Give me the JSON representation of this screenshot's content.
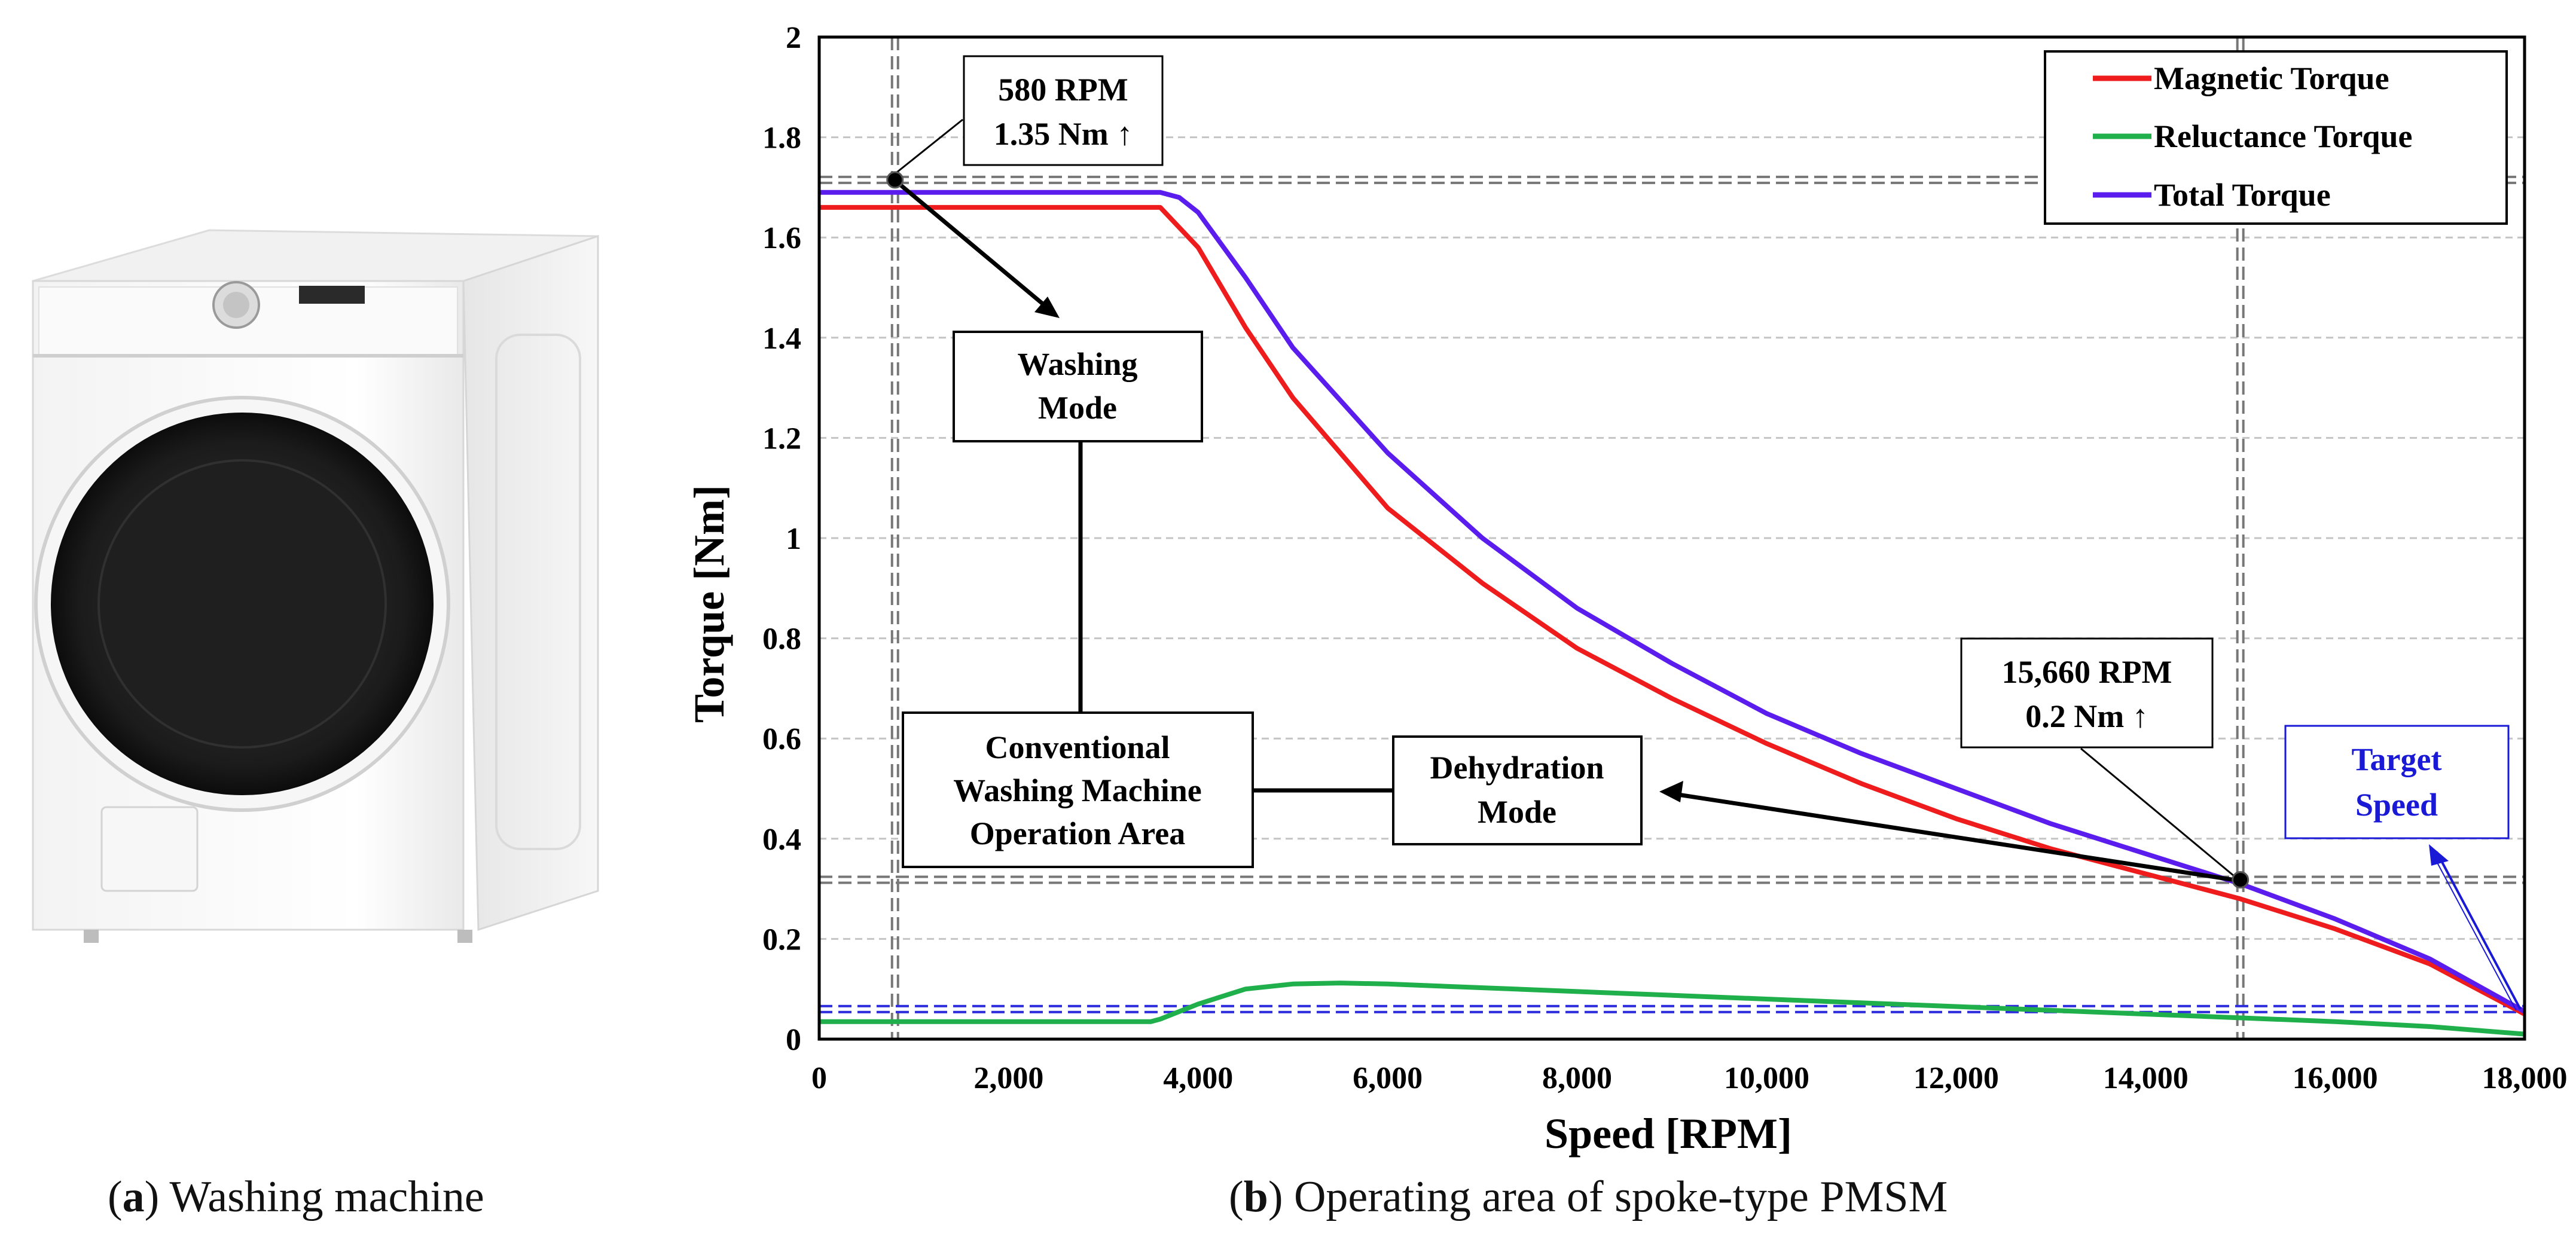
{
  "captions": {
    "a": {
      "letter": "a",
      "text": "Washing machine"
    },
    "b": {
      "letter": "b",
      "text": "Operating area of spoke-type PMSM"
    }
  },
  "chart_data": {
    "type": "line",
    "title": "",
    "xlabel": "Speed [RPM]",
    "ylabel": "Torque [Nm]",
    "xlim": [
      0,
      18000
    ],
    "ylim": [
      0,
      2
    ],
    "x_ticks": [
      "0",
      "2,000",
      "4,000",
      "6,000",
      "8,000",
      "10,000",
      "12,000",
      "14,000",
      "16,000",
      "18,000"
    ],
    "y_ticks": [
      "0",
      "0.2",
      "0.4",
      "0.6",
      "0.8",
      "1",
      "1.2",
      "1.4",
      "1.6",
      "1.8",
      "2"
    ],
    "grid": "horizontal dashed",
    "legend_position": "top-right",
    "series": [
      {
        "name": "Magnetic Torque",
        "color": "#ee1c1c",
        "x": [
          0,
          3500,
          3600,
          4000,
          4500,
          5000,
          6000,
          7000,
          8000,
          9000,
          10000,
          11000,
          12000,
          13000,
          14000,
          15000,
          16000,
          17000,
          18000
        ],
        "y": [
          1.66,
          1.66,
          1.66,
          1.58,
          1.42,
          1.28,
          1.06,
          0.91,
          0.78,
          0.68,
          0.59,
          0.51,
          0.44,
          0.38,
          0.33,
          0.28,
          0.22,
          0.15,
          0.05
        ]
      },
      {
        "name": "Reluctance Torque",
        "color": "#1fb04c",
        "x": [
          0,
          3500,
          3600,
          4000,
          4500,
          5000,
          5500,
          6000,
          8000,
          10000,
          12000,
          14000,
          16000,
          17000,
          18000
        ],
        "y": [
          0.035,
          0.035,
          0.04,
          0.07,
          0.1,
          0.11,
          0.112,
          0.11,
          0.095,
          0.08,
          0.065,
          0.05,
          0.035,
          0.025,
          0.01
        ]
      },
      {
        "name": "Total Torque",
        "color": "#5b1cee",
        "x": [
          0,
          3500,
          3600,
          3800,
          4000,
          4500,
          5000,
          6000,
          7000,
          8000,
          9000,
          10000,
          11000,
          12000,
          13000,
          14000,
          15000,
          16000,
          17000,
          18000
        ],
        "y": [
          1.69,
          1.69,
          1.69,
          1.68,
          1.65,
          1.52,
          1.38,
          1.17,
          1.0,
          0.86,
          0.75,
          0.65,
          0.57,
          0.5,
          0.43,
          0.37,
          0.31,
          0.24,
          0.16,
          0.055
        ]
      }
    ],
    "reference_lines": [
      {
        "orientation": "vertical",
        "x": 800,
        "style": "double-dashed",
        "color": "#777777"
      },
      {
        "orientation": "horizontal",
        "y": 1.715,
        "style": "double-dashed",
        "color": "#777777"
      },
      {
        "orientation": "vertical",
        "x": 15000,
        "style": "double-dashed",
        "color": "#777777"
      },
      {
        "orientation": "horizontal",
        "y": 0.318,
        "style": "double-dashed",
        "color": "#777777"
      },
      {
        "orientation": "horizontal",
        "y": 0.06,
        "style": "double-dashed",
        "color": "#2b2bdd"
      }
    ],
    "points": [
      {
        "x": 800,
        "y": 1.715
      },
      {
        "x": 15000,
        "y": 0.318
      }
    ],
    "annotations": {
      "point1_line1": "580 RPM",
      "point1_line2": "1.35 Nm ↑",
      "point2_line1": "15,660 RPM",
      "point2_line2": "0.2 Nm ↑",
      "washing_line1": "Washing",
      "washing_line2": "Mode",
      "conv_line1": "Conventional",
      "conv_line2": "Washing Machine",
      "conv_line3": "Operation Area",
      "dehyd_line1": "Dehydration",
      "dehyd_line2": "Mode",
      "target_line1": "Target",
      "target_line2": "Speed",
      "target_color": "#1a1ad6"
    }
  }
}
